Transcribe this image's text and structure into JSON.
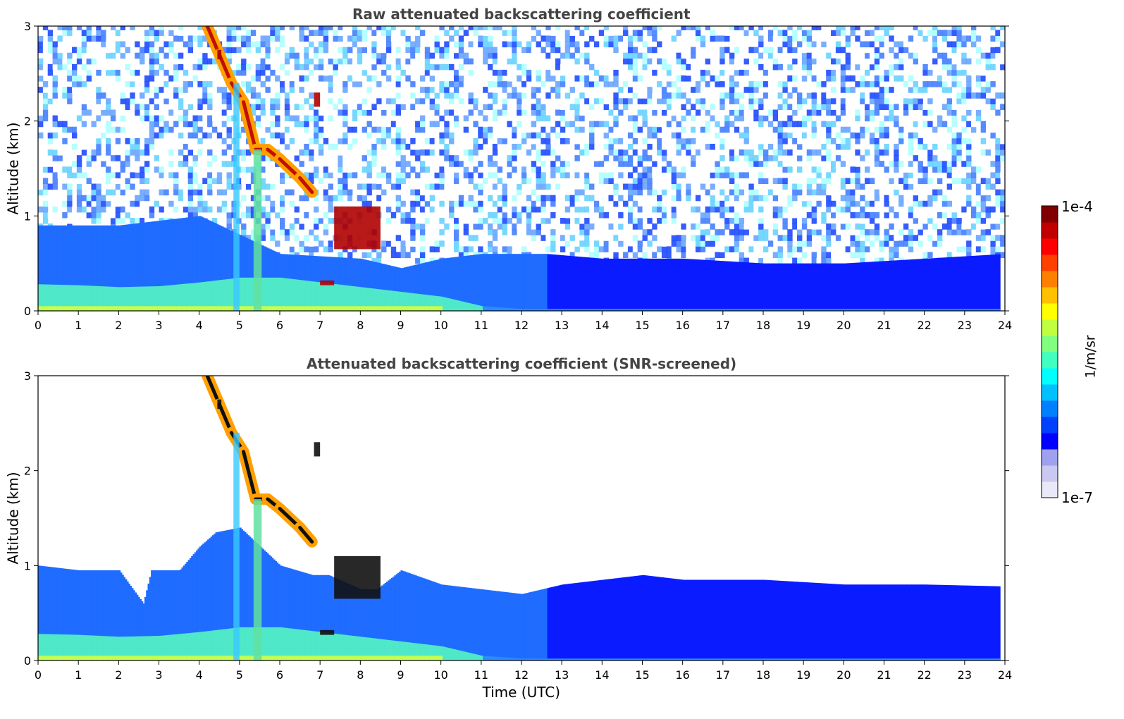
{
  "chart_data": [
    {
      "type": "heatmap",
      "title": "Raw attenuated backscattering coefficient",
      "xlabel": "",
      "ylabel": "Altitude (km)",
      "xlim": [
        0,
        24
      ],
      "ylim": [
        0,
        3
      ],
      "x_ticks": [
        "0",
        "1",
        "2",
        "3",
        "4",
        "5",
        "6",
        "7",
        "8",
        "9",
        "10",
        "11",
        "12",
        "13",
        "14",
        "15",
        "16",
        "17",
        "18",
        "19",
        "20",
        "21",
        "22",
        "23",
        "24"
      ],
      "y_ticks": [
        "0",
        "1",
        "2",
        "3"
      ],
      "color_scale": "log",
      "background_noise": true,
      "boundary_layer_top_km": [
        [
          0,
          0.28
        ],
        [
          1,
          0.27
        ],
        [
          2,
          0.25
        ],
        [
          3,
          0.26
        ],
        [
          4,
          0.3
        ],
        [
          5,
          0.35
        ],
        [
          6,
          0.35
        ],
        [
          7,
          0.3
        ],
        [
          8,
          0.25
        ],
        [
          9,
          0.2
        ],
        [
          10,
          0.15
        ],
        [
          11,
          0.05
        ],
        [
          12,
          0.02
        ],
        [
          24,
          0.02
        ]
      ],
      "aerosol_layer_top_km": [
        [
          0,
          0.9
        ],
        [
          2,
          0.9
        ],
        [
          4,
          1.0
        ],
        [
          6,
          0.6
        ],
        [
          8,
          0.55
        ],
        [
          9,
          0.45
        ],
        [
          10,
          0.55
        ],
        [
          11,
          0.6
        ],
        [
          12,
          0.6
        ],
        [
          12.6,
          0.6
        ],
        [
          14,
          0.55
        ],
        [
          16,
          0.55
        ],
        [
          18,
          0.5
        ],
        [
          20,
          0.5
        ],
        [
          22,
          0.55
        ],
        [
          24,
          0.6
        ]
      ],
      "plume_path": [
        [
          4.2,
          3.0
        ],
        [
          4.5,
          2.7
        ],
        [
          4.8,
          2.4
        ],
        [
          5.1,
          2.2
        ],
        [
          5.4,
          1.7
        ],
        [
          5.7,
          1.7
        ],
        [
          6.0,
          1.6
        ],
        [
          6.5,
          1.4
        ],
        [
          6.8,
          1.25
        ]
      ],
      "cloud_segments": [
        {
          "x": [
            4.45,
            4.55
          ],
          "y": [
            2.65,
            2.75
          ]
        },
        {
          "x": [
            6.85,
            7.0
          ],
          "y": [
            2.15,
            2.3
          ]
        },
        {
          "x": [
            7.0,
            7.35
          ],
          "y": [
            0.27,
            0.32
          ]
        },
        {
          "x": [
            7.35,
            8.5
          ],
          "y": [
            0.65,
            1.1
          ]
        }
      ]
    },
    {
      "type": "heatmap",
      "title": "Attenuated backscattering coefficient (SNR-screened)",
      "xlabel": "Time (UTC)",
      "ylabel": "Altitude (km)",
      "xlim": [
        0,
        24
      ],
      "ylim": [
        0,
        3
      ],
      "x_ticks": [
        "0",
        "1",
        "2",
        "3",
        "4",
        "5",
        "6",
        "7",
        "8",
        "9",
        "10",
        "11",
        "12",
        "13",
        "14",
        "15",
        "16",
        "17",
        "18",
        "19",
        "20",
        "21",
        "22",
        "23",
        "24"
      ],
      "y_ticks": [
        "0",
        "1",
        "2",
        "3"
      ],
      "color_scale": "log",
      "background_noise": false,
      "screened_layer_top_km": [
        [
          0,
          1.0
        ],
        [
          1,
          0.95
        ],
        [
          2,
          0.95
        ],
        [
          2.6,
          0.6
        ],
        [
          2.8,
          0.95
        ],
        [
          3.5,
          0.95
        ],
        [
          4,
          1.2
        ],
        [
          4.4,
          1.35
        ],
        [
          5,
          1.4
        ],
        [
          6,
          1.0
        ],
        [
          6.8,
          0.9
        ],
        [
          7.2,
          0.9
        ],
        [
          8,
          0.75
        ],
        [
          8.4,
          0.75
        ],
        [
          9,
          0.95
        ],
        [
          10,
          0.8
        ],
        [
          11,
          0.75
        ],
        [
          12,
          0.7
        ],
        [
          13,
          0.8
        ],
        [
          15,
          0.9
        ],
        [
          16,
          0.85
        ],
        [
          18,
          0.85
        ],
        [
          20,
          0.8
        ],
        [
          22,
          0.8
        ],
        [
          24,
          0.78
        ]
      ]
    }
  ],
  "colorbar": {
    "label": "1/m/sr",
    "min_label": "1e-7",
    "max_label": "1e-4",
    "colors": [
      "#e8e8f8",
      "#c8c8f0",
      "#a0a0f0",
      "#0000ff",
      "#0040ff",
      "#0080ff",
      "#00c0ff",
      "#00ffff",
      "#40ffc0",
      "#80ff80",
      "#c0ff40",
      "#ffff00",
      "#ffc000",
      "#ff8000",
      "#ff4000",
      "#ff0000",
      "#c00000",
      "#800000"
    ]
  }
}
